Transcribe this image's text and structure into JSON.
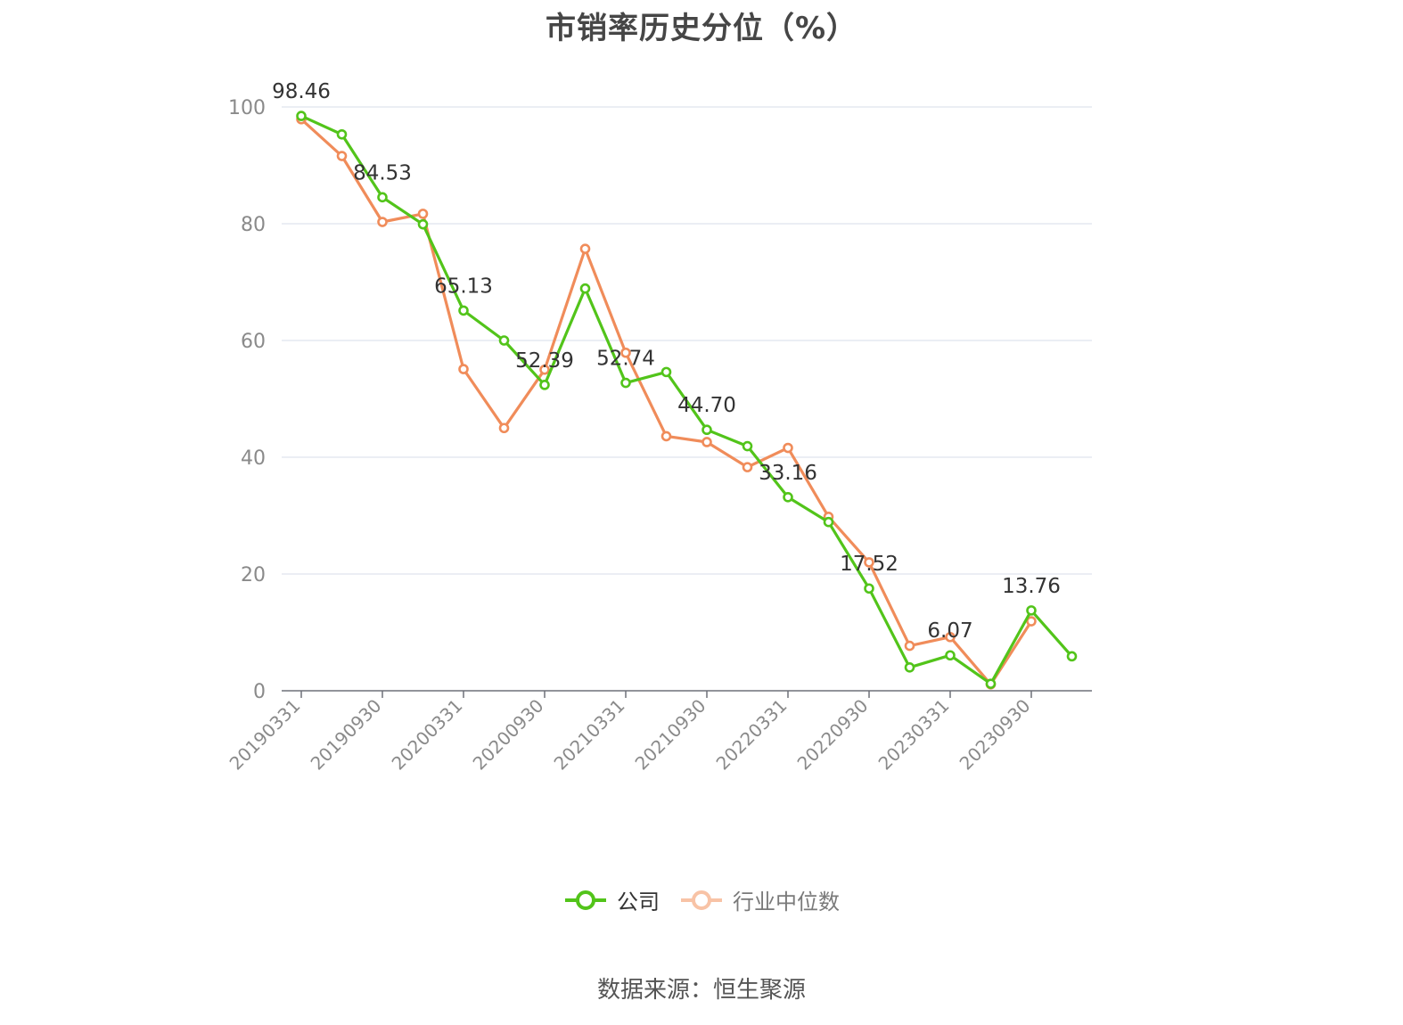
{
  "chart_data": {
    "type": "line",
    "title": "市销率历史分位（%）",
    "source": "数据来源：恒生聚源",
    "x": [
      "20190331",
      "20190630",
      "20190930",
      "20191231",
      "20200331",
      "20200630",
      "20200930",
      "20201231",
      "20210331",
      "20210630",
      "20210930",
      "20211231",
      "20220331",
      "20220630",
      "20220930",
      "20221231",
      "20230331",
      "20230630",
      "20230930",
      "20231231"
    ],
    "x_tick_labels": [
      "20190331",
      "20190930",
      "20200331",
      "20200930",
      "20210331",
      "20210930",
      "20220331",
      "20220930",
      "20230331",
      "20230930"
    ],
    "ylim": [
      0,
      100
    ],
    "y_ticks": [
      0,
      20,
      40,
      60,
      80,
      100
    ],
    "grid": true,
    "legend_position": "bottom",
    "series": [
      {
        "name": "公司",
        "color": "#52c41a",
        "values": [
          98.46,
          95.3,
          84.53,
          79.9,
          65.13,
          60.0,
          52.39,
          68.9,
          52.74,
          54.6,
          44.7,
          41.9,
          33.16,
          28.9,
          17.52,
          4.0,
          6.07,
          1.2,
          13.76,
          5.9
        ]
      },
      {
        "name": "行业中位数",
        "color": "#f08c5a",
        "values": [
          97.9,
          91.6,
          80.3,
          81.7,
          55.1,
          45.0,
          55.0,
          75.7,
          57.9,
          43.6,
          42.6,
          38.3,
          41.6,
          29.8,
          22.0,
          7.7,
          9.2,
          1.1,
          11.9,
          null
        ]
      }
    ],
    "data_labels": [
      {
        "index": 0,
        "text": "98.46"
      },
      {
        "index": 2,
        "text": "84.53"
      },
      {
        "index": 4,
        "text": "65.13"
      },
      {
        "index": 6,
        "text": "52.39"
      },
      {
        "index": 8,
        "text": "52.74"
      },
      {
        "index": 10,
        "text": "44.70"
      },
      {
        "index": 12,
        "text": "33.16"
      },
      {
        "index": 14,
        "text": "17.52"
      },
      {
        "index": 16,
        "text": "6.07"
      },
      {
        "index": 18,
        "text": "13.76"
      }
    ]
  }
}
